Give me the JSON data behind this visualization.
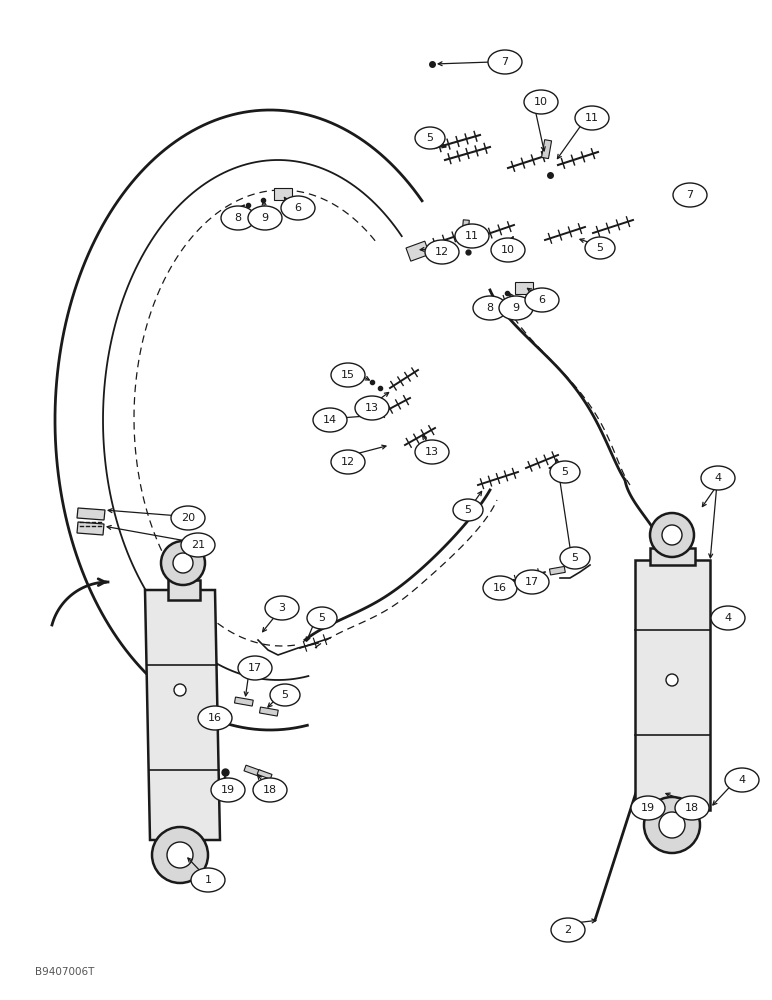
{
  "bg_color": "#ffffff",
  "line_color": "#1a1a1a",
  "watermark": "B9407006T",
  "fig_width": 7.72,
  "fig_height": 10.0,
  "dpi": 100
}
